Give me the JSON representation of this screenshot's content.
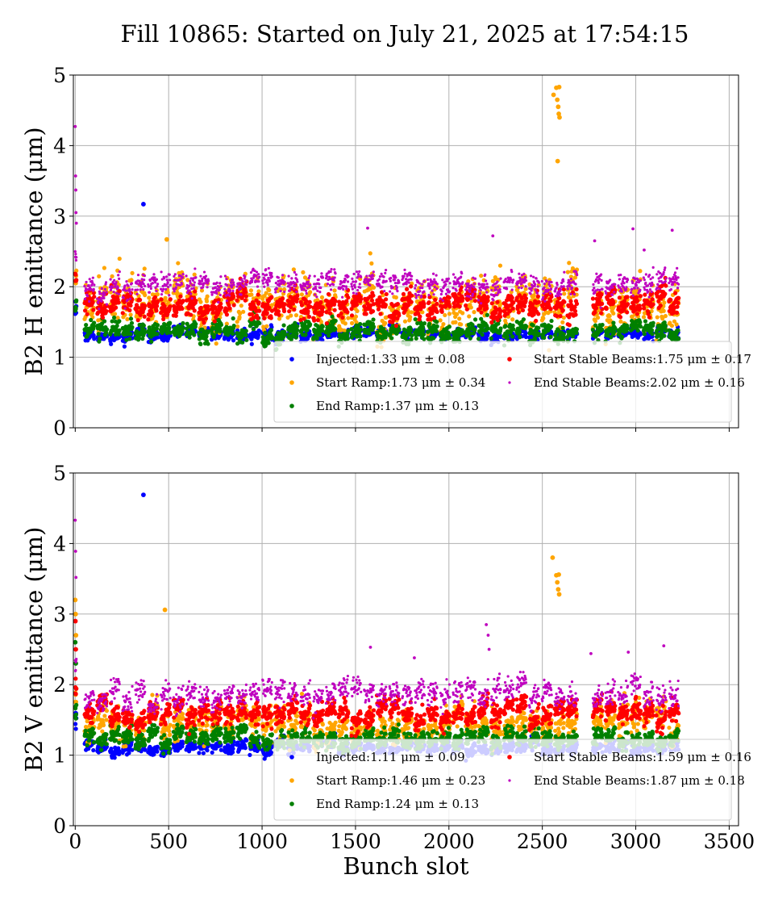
{
  "figure": {
    "title": "Fill 10865: Started on July 21, 2025 at 17:54:15"
  },
  "colors": {
    "injected": "#0000ff",
    "start_ramp": "#ffa500",
    "end_ramp": "#008000",
    "start_stable": "#ff0000",
    "end_stable": "#bf00bf"
  },
  "chart_data": [
    {
      "type": "scatter",
      "ylabel": "B2 H emittance (μm)",
      "xlabel": "",
      "xlim": [
        -10,
        3550
      ],
      "ylim": [
        0,
        5
      ],
      "xticks": [
        0,
        500,
        1000,
        1500,
        2000,
        2500,
        3000,
        3500
      ],
      "yticks": [
        0,
        1,
        2,
        3,
        4,
        5
      ],
      "show_xtick_labels": false,
      "grid": true,
      "legend_position": "lower-right",
      "series": [
        {
          "key": "injected",
          "name": "Injected:1.33 μm ± 0.08",
          "mean": 1.33,
          "std": 0.08,
          "outliers": [
            [
              365,
              3.17
            ]
          ]
        },
        {
          "key": "start_ramp",
          "name": "Start Ramp:1.73 μm ± 0.34",
          "mean": 1.73,
          "std": 0.34,
          "outliers": [
            [
              2560,
              4.72
            ],
            [
              2575,
              4.82
            ],
            [
              2580,
              4.65
            ],
            [
              2585,
              4.55
            ],
            [
              2588,
              4.45
            ],
            [
              2592,
              4.4
            ],
            [
              2590,
              4.83
            ],
            [
              2582,
              3.78
            ],
            [
              490,
              2.67
            ]
          ]
        },
        {
          "key": "end_ramp",
          "name": "End Ramp:1.37 μm ± 0.13",
          "mean": 1.37,
          "std": 0.13,
          "outliers": []
        },
        {
          "key": "start_stable",
          "name": "Start Stable Beams:1.75 μm ± 0.17",
          "mean": 1.75,
          "std": 0.17,
          "outliers": []
        },
        {
          "key": "end_stable",
          "name": "End Stable Beams:2.02 μm ± 0.16",
          "mean": 2.02,
          "std": 0.16,
          "outliers": [
            [
              0,
              4.27
            ],
            [
              2,
              3.57
            ],
            [
              3,
              3.37
            ],
            [
              4,
              3.05
            ],
            [
              6,
              2.9
            ],
            [
              1565,
              2.83
            ],
            [
              2235,
              2.72
            ],
            [
              2780,
              2.65
            ],
            [
              2985,
              2.82
            ],
            [
              3045,
              2.52
            ],
            [
              3195,
              2.8
            ]
          ]
        }
      ]
    },
    {
      "type": "scatter",
      "ylabel": "B2 V emittance (μm)",
      "xlabel": "Bunch slot",
      "xlim": [
        -10,
        3550
      ],
      "ylim": [
        0,
        5
      ],
      "xticks": [
        0,
        500,
        1000,
        1500,
        2000,
        2500,
        3000,
        3500
      ],
      "yticks": [
        0,
        1,
        2,
        3,
        4,
        5
      ],
      "show_xtick_labels": true,
      "grid": true,
      "legend_position": "lower-right",
      "series": [
        {
          "key": "injected",
          "name": "Injected:1.11 μm ± 0.09",
          "mean": 1.11,
          "std": 0.09,
          "outliers": [
            [
              365,
              4.69
            ]
          ]
        },
        {
          "key": "start_ramp",
          "name": "Start Ramp:1.46 μm ± 0.23",
          "mean": 1.46,
          "std": 0.23,
          "outliers": [
            [
              2555,
              3.8
            ],
            [
              2575,
              3.55
            ],
            [
              2580,
              3.45
            ],
            [
              2585,
              3.35
            ],
            [
              2590,
              3.28
            ],
            [
              2588,
              3.56
            ],
            [
              480,
              3.06
            ],
            [
              0,
              3.2
            ],
            [
              2,
              3.0
            ],
            [
              4,
              2.7
            ]
          ]
        },
        {
          "key": "end_ramp",
          "name": "End Ramp:1.24 μm ± 0.13",
          "mean": 1.24,
          "std": 0.13,
          "outliers": [
            [
              0,
              2.6
            ],
            [
              3,
              2.3
            ]
          ]
        },
        {
          "key": "start_stable",
          "name": "Start Stable Beams:1.59 μm ± 0.16",
          "mean": 1.59,
          "std": 0.16,
          "outliers": [
            [
              1,
              2.9
            ],
            [
              3,
              2.5
            ]
          ]
        },
        {
          "key": "end_stable",
          "name": "End Stable Beams:1.87 μm ± 0.18",
          "mean": 1.87,
          "std": 0.18,
          "outliers": [
            [
              0,
              4.33
            ],
            [
              2,
              3.89
            ],
            [
              4,
              3.52
            ],
            [
              2200,
              2.85
            ],
            [
              2210,
              2.7
            ],
            [
              2215,
              2.5
            ],
            [
              1580,
              2.53
            ],
            [
              1815,
              2.38
            ],
            [
              2760,
              2.44
            ],
            [
              2960,
              2.46
            ],
            [
              3150,
              2.55
            ]
          ]
        }
      ]
    }
  ]
}
